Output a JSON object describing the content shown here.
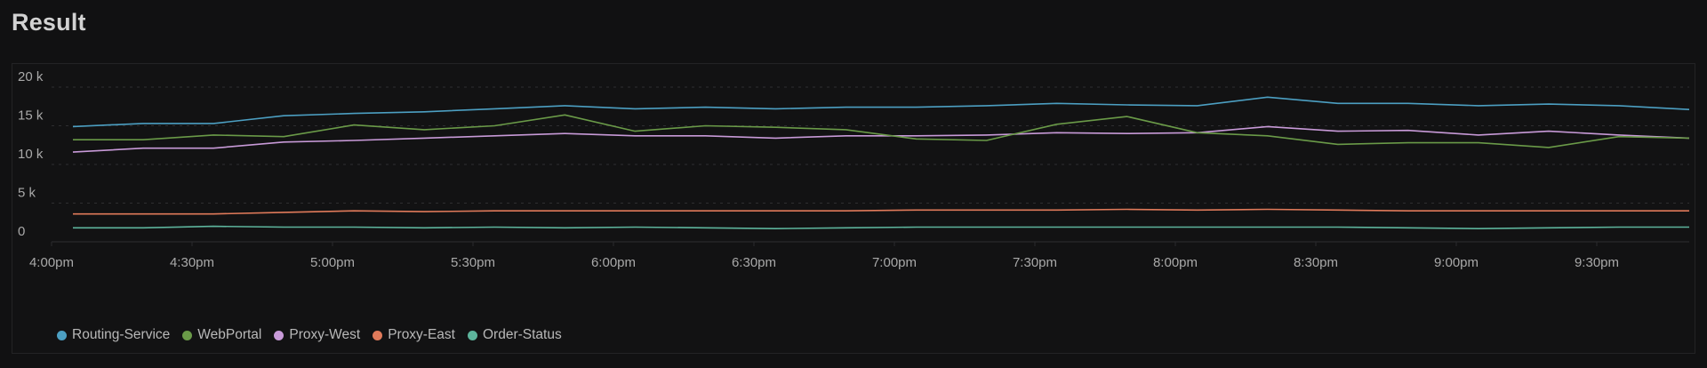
{
  "page": {
    "title": "Result"
  },
  "colors": {
    "Routing-Service": "#4c9fc2",
    "WebPortal": "#6a9a48",
    "Proxy-West": "#c89ad8",
    "Proxy-East": "#e07a5a",
    "Order-Status": "#5db49c",
    "grid": "#2e2e30",
    "background": "#111112"
  },
  "chart_data": {
    "type": "line",
    "title": "Result",
    "xlabel": "",
    "ylabel": "",
    "ylim": [
      0,
      20000
    ],
    "y_ticks": [
      "0",
      "5 k",
      "10 k",
      "15 k",
      "20 k"
    ],
    "y_tick_values": [
      0,
      5000,
      10000,
      15000,
      20000
    ],
    "x_ticks": [
      "4:00pm",
      "4:30pm",
      "5:00pm",
      "5:30pm",
      "6:00pm",
      "6:30pm",
      "7:00pm",
      "7:30pm",
      "8:00pm",
      "8:30pm",
      "9:00pm",
      "9:30pm"
    ],
    "grid": true,
    "legend_position": "bottom-left",
    "x": [
      "4:05pm",
      "4:20pm",
      "4:35pm",
      "4:50pm",
      "5:05pm",
      "5:20pm",
      "5:35pm",
      "5:50pm",
      "6:05pm",
      "6:20pm",
      "6:35pm",
      "6:50pm",
      "7:05pm",
      "7:20pm",
      "7:35pm",
      "7:50pm",
      "8:05pm",
      "8:20pm",
      "8:35pm",
      "8:50pm",
      "9:05pm",
      "9:20pm",
      "9:35pm",
      "9:50pm"
    ],
    "series": [
      {
        "name": "Routing-Service",
        "values": [
          14900,
          15300,
          15300,
          16300,
          16600,
          16800,
          17200,
          17600,
          17200,
          17400,
          17200,
          17400,
          17400,
          17600,
          17900,
          17700,
          17600,
          18700,
          17900,
          17900,
          17600,
          17800,
          17600,
          17100
        ]
      },
      {
        "name": "WebPortal",
        "values": [
          13200,
          13200,
          13800,
          13600,
          15100,
          14500,
          15000,
          16400,
          14300,
          15000,
          14800,
          14500,
          13300,
          13100,
          15200,
          16200,
          14100,
          13700,
          12600,
          12800,
          12800,
          12200,
          13600,
          13400
        ]
      },
      {
        "name": "Proxy-West",
        "values": [
          11600,
          12100,
          12100,
          12900,
          13100,
          13400,
          13700,
          14000,
          13700,
          13700,
          13400,
          13700,
          13700,
          13800,
          14100,
          14000,
          14100,
          14900,
          14300,
          14400,
          13800,
          14300,
          13800,
          13400
        ]
      },
      {
        "name": "Proxy-East",
        "values": [
          3600,
          3600,
          3600,
          3800,
          4000,
          3900,
          4000,
          4000,
          4000,
          4000,
          4000,
          4000,
          4100,
          4100,
          4100,
          4200,
          4100,
          4200,
          4100,
          4000,
          4000,
          4000,
          4000,
          4000
        ]
      },
      {
        "name": "Order-Status",
        "values": [
          1800,
          1800,
          2000,
          1900,
          1900,
          1800,
          1900,
          1800,
          1900,
          1800,
          1700,
          1800,
          1900,
          1900,
          1900,
          1900,
          1900,
          1900,
          1900,
          1800,
          1700,
          1800,
          1900,
          1900
        ]
      }
    ]
  },
  "legend": [
    {
      "label": "Routing-Service"
    },
    {
      "label": "WebPortal"
    },
    {
      "label": "Proxy-West"
    },
    {
      "label": "Proxy-East"
    },
    {
      "label": "Order-Status"
    }
  ]
}
